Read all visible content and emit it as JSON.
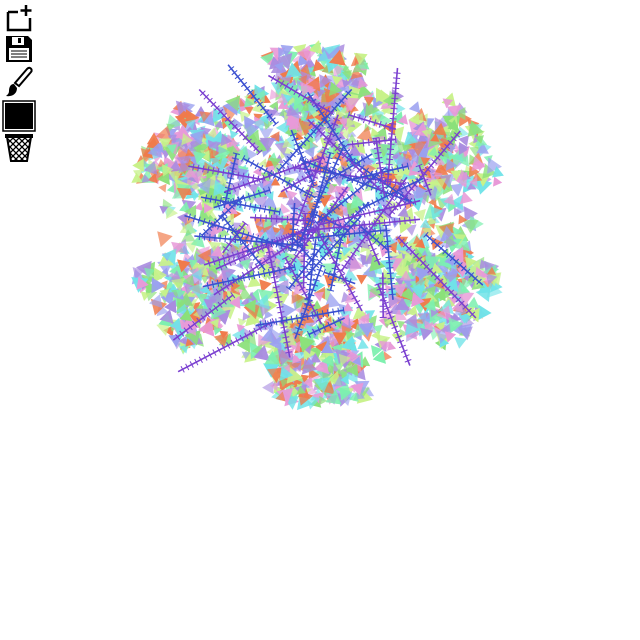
{
  "app": {
    "tools": [
      {
        "id": "new",
        "icon": "new-canvas-icon",
        "interactable": true
      },
      {
        "id": "save",
        "icon": "floppy-disk-icon",
        "interactable": true
      },
      {
        "id": "brush",
        "icon": "paint-brush-icon",
        "interactable": true
      },
      {
        "id": "color",
        "icon": "color-swatch-icon",
        "interactable": true
      },
      {
        "id": "trash",
        "icon": "trash-basket-icon",
        "interactable": true
      }
    ],
    "current_color": "#000000"
  },
  "drawing": {
    "palette": [
      "#f07a4a",
      "#a98ce0",
      "#7ef0b0",
      "#c8f28a",
      "#6fe3e8",
      "#9aa0f0",
      "#8be07a",
      "#e89ad8"
    ],
    "stroke_color": "#3a4fd0",
    "accent_color": "#7a3fd0",
    "lobe_count": 6,
    "background": "#ffffff"
  }
}
